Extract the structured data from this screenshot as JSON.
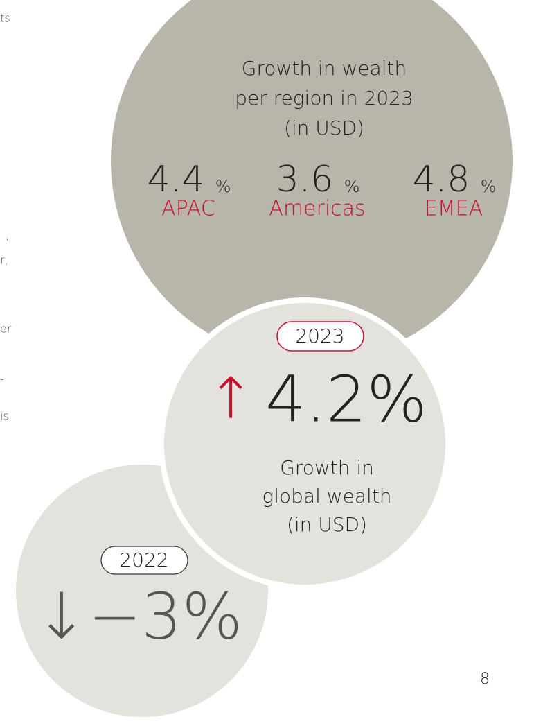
{
  "side_text": [
    "ts",
    ",",
    "r,",
    "er",
    "-",
    "is"
  ],
  "regions": {
    "title_lines": [
      "Growth in wealth",
      "per region in 2023",
      "(in USD)"
    ],
    "items": [
      {
        "value": "4.4",
        "unit": "%",
        "label": "APAC"
      },
      {
        "value": "3.6",
        "unit": "%",
        "label": "Americas"
      },
      {
        "value": "4.8",
        "unit": "%",
        "label": "EMEA"
      }
    ]
  },
  "current": {
    "year": "2023",
    "arrow": "↑",
    "value": "4.2%",
    "caption_lines": [
      "Growth in",
      "global wealth",
      "(in USD)"
    ]
  },
  "previous": {
    "year": "2022",
    "value": "↓−3%"
  },
  "page_number": "8"
}
